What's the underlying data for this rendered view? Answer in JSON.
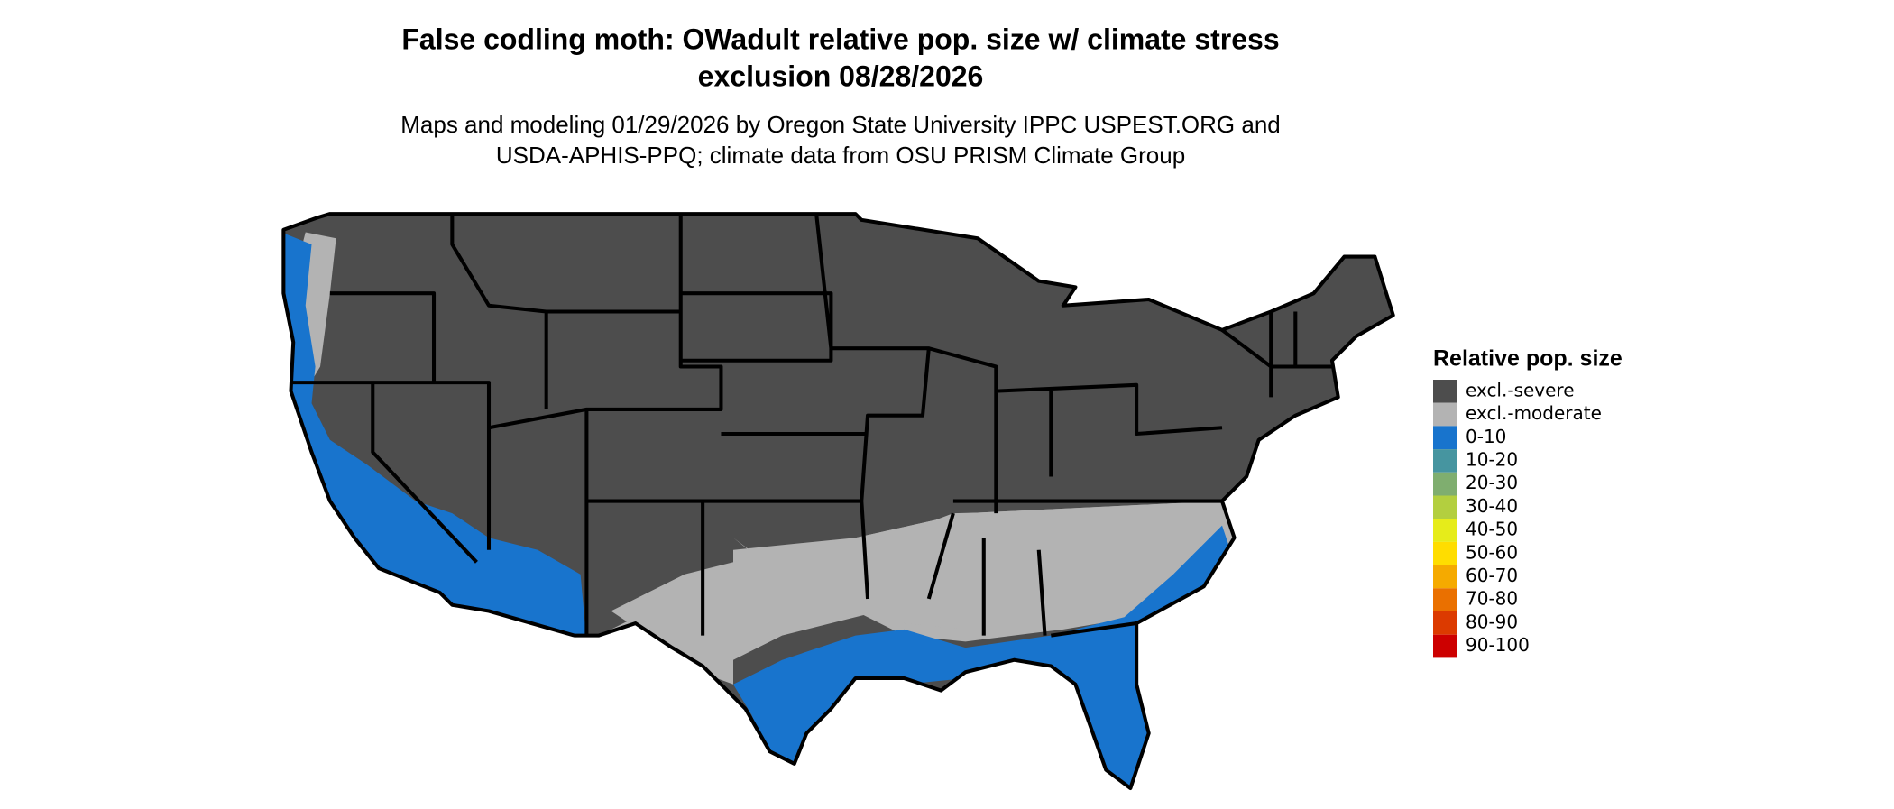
{
  "header": {
    "title": [
      "False codling moth: OWadult relative pop. size w/ climate stress",
      "exclusion 08/28/2026"
    ],
    "subtitle": [
      "Maps and modeling 01/29/2026 by Oregon State University IPPC USPEST.ORG and",
      "USDA-APHIS-PPQ; climate data from OSU PRISM Climate Group"
    ]
  },
  "legend": {
    "title": "Relative pop. size",
    "items": [
      {
        "label": "excl.-severe",
        "color": "#4d4d4d"
      },
      {
        "label": "excl.-moderate",
        "color": "#b3b3b3"
      },
      {
        "label": "0-10",
        "color": "#1874cd"
      },
      {
        "label": "10-20",
        "color": "#4695a0"
      },
      {
        "label": "20-30",
        "color": "#7fae6f"
      },
      {
        "label": "30-40",
        "color": "#b3cf3f"
      },
      {
        "label": "40-50",
        "color": "#e6ec1a"
      },
      {
        "label": "50-60",
        "color": "#ffdd00"
      },
      {
        "label": "60-70",
        "color": "#f5aa00"
      },
      {
        "label": "70-80",
        "color": "#ea7000"
      },
      {
        "label": "80-90",
        "color": "#dc3a00"
      },
      {
        "label": "90-100",
        "color": "#cd0000"
      }
    ]
  }
}
